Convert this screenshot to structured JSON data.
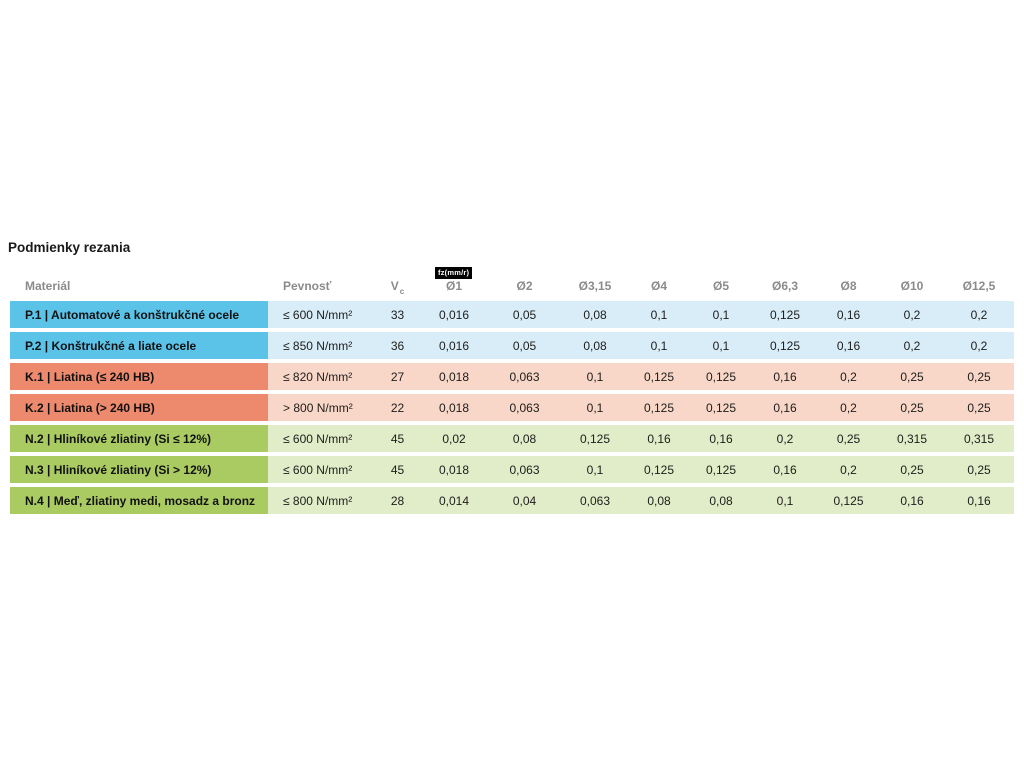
{
  "page": {
    "title": "Podmienky rezania"
  },
  "table": {
    "headers": {
      "material": "Materiál",
      "strength": "Pevnosť",
      "vc_main": "V",
      "vc_sub": "c",
      "fz_badge": "fz(mm/r)",
      "diameters": [
        "Ø1",
        "Ø2",
        "Ø3,15",
        "Ø4",
        "Ø5",
        "Ø6,3",
        "Ø8",
        "Ø10",
        "Ø12,5"
      ]
    },
    "colors": {
      "steel_label": "#5cc3e8",
      "steel_row": "#d9edf8",
      "cast_iron_label": "#ed8a6e",
      "cast_iron_row": "#f8d6c8",
      "non_ferrous_label": "#aacb61",
      "non_ferrous_row": "#e1ecc8"
    },
    "rows": [
      {
        "group": "steel",
        "material": "P.1 | Automatové a konštrukčné ocele",
        "strength": "≤ 600 N/mm²",
        "vc": "33",
        "fz": [
          "0,016",
          "0,05",
          "0,08",
          "0,1",
          "0,1",
          "0,125",
          "0,16",
          "0,2",
          "0,2"
        ]
      },
      {
        "group": "steel",
        "material": "P.2 | Konštrukčné a liate ocele",
        "strength": "≤ 850 N/mm²",
        "vc": "36",
        "fz": [
          "0,016",
          "0,05",
          "0,08",
          "0,1",
          "0,1",
          "0,125",
          "0,16",
          "0,2",
          "0,2"
        ]
      },
      {
        "group": "cast-iron",
        "material": "K.1 | Liatina (≤ 240 HB)",
        "strength": "≤ 820 N/mm²",
        "vc": "27",
        "fz": [
          "0,018",
          "0,063",
          "0,1",
          "0,125",
          "0,125",
          "0,16",
          "0,2",
          "0,25",
          "0,25"
        ]
      },
      {
        "group": "cast-iron",
        "material": "K.2 | Liatina (> 240 HB)",
        "strength": "> 800 N/mm²",
        "vc": "22",
        "fz": [
          "0,018",
          "0,063",
          "0,1",
          "0,125",
          "0,125",
          "0,16",
          "0,2",
          "0,25",
          "0,25"
        ]
      },
      {
        "group": "non-ferrous",
        "material": "N.2 | Hliníkové zliatiny (Si ≤ 12%)",
        "strength": "≤ 600 N/mm²",
        "vc": "45",
        "fz": [
          "0,02",
          "0,08",
          "0,125",
          "0,16",
          "0,16",
          "0,2",
          "0,25",
          "0,315",
          "0,315"
        ]
      },
      {
        "group": "non-ferrous",
        "material": "N.3 | Hliníkové zliatiny (Si > 12%)",
        "strength": "≤ 600 N/mm²",
        "vc": "45",
        "fz": [
          "0,018",
          "0,063",
          "0,1",
          "0,125",
          "0,125",
          "0,16",
          "0,2",
          "0,25",
          "0,25"
        ]
      },
      {
        "group": "non-ferrous",
        "material": "N.4 | Meď, zliatiny medi, mosadz a bronz",
        "strength": "≤ 800 N/mm²",
        "vc": "28",
        "fz": [
          "0,014",
          "0,04",
          "0,063",
          "0,08",
          "0,08",
          "0,1",
          "0,125",
          "0,16",
          "0,16"
        ]
      }
    ]
  }
}
